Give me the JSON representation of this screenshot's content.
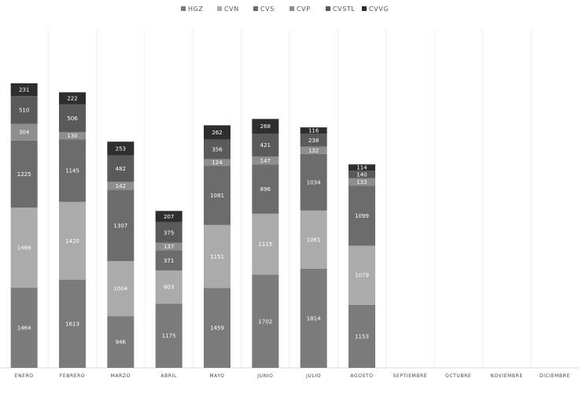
{
  "chart_data": {
    "type": "bar",
    "stacked": true,
    "categories": [
      "ENERO",
      "FEBRERO",
      "MARZO",
      "ABRIL",
      "MAYO",
      "JUNIO",
      "JULIO",
      "AGOSTO",
      "SEPTIEMBRE",
      "OCTUBRE",
      "NOVIEMBRE",
      "DICIEMBRE"
    ],
    "series": [
      {
        "name": "HGZ",
        "color": "#7b7b7b",
        "values": [
          1464,
          1613,
          946,
          1175,
          1459,
          1702,
          1814,
          1153,
          null,
          null,
          null,
          null
        ]
      },
      {
        "name": "CVN",
        "color": "#ababab",
        "values": [
          1466,
          1420,
          1004,
          603,
          1151,
          1115,
          1061,
          1079,
          null,
          null,
          null,
          null
        ]
      },
      {
        "name": "CVS",
        "color": "#6c6c6c",
        "values": [
          1225,
          1145,
          1307,
          371,
          1081,
          896,
          1034,
          1099,
          null,
          null,
          null,
          null
        ]
      },
      {
        "name": "CVP",
        "color": "#8e8e8e",
        "values": [
          304,
          130,
          142,
          137,
          124,
          147,
          132,
          133,
          null,
          null,
          null,
          null
        ]
      },
      {
        "name": "CVSTL",
        "color": "#5a5a5a",
        "values": [
          510,
          506,
          482,
          375,
          356,
          421,
          238,
          140,
          null,
          null,
          null,
          null
        ]
      },
      {
        "name": "CVVG",
        "color": "#2e2e2e",
        "values": [
          231,
          222,
          253,
          207,
          262,
          268,
          116,
          114,
          null,
          null,
          null,
          null
        ]
      }
    ],
    "legend_position": "top-center",
    "grid": "vertical"
  }
}
